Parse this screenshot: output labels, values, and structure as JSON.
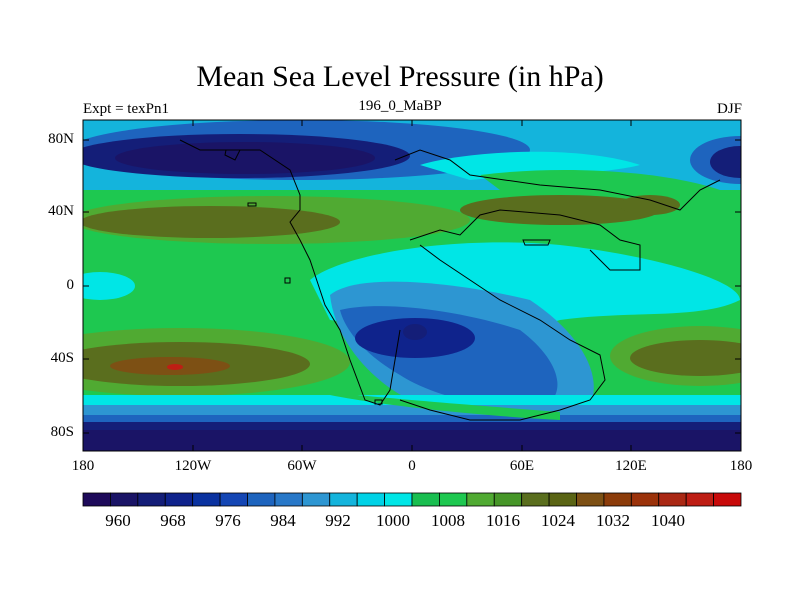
{
  "title": "Mean Sea Level Pressure (in hPa)",
  "subtitle_left": "Expt = texPn1",
  "subtitle_center": "196_0_MaBP",
  "subtitle_right": "DJF",
  "y_ticks": [
    "80N",
    "40N",
    "0",
    "40S",
    "80S"
  ],
  "x_ticks": [
    "180",
    "120W",
    "60W",
    "0",
    "60E",
    "120E",
    "180"
  ],
  "colorbar": {
    "labels": [
      "960",
      "968",
      "976",
      "984",
      "992",
      "1000",
      "1008",
      "1016",
      "1024",
      "1032",
      "1040"
    ],
    "colors": [
      "#1e0a5a",
      "#1a1466",
      "#141e78",
      "#0f238c",
      "#0a32a0",
      "#1446b4",
      "#1e64be",
      "#2878c8",
      "#2d96d2",
      "#14b4dc",
      "#00d2e6",
      "#00e6e6",
      "#19be50",
      "#1ec850",
      "#50aa32",
      "#469628",
      "#5a6e1e",
      "#5a6414",
      "#7d5014",
      "#8c3c0a",
      "#9b320a",
      "#aa2814",
      "#be1e14",
      "#c80a0a"
    ]
  },
  "chart_data": {
    "type": "heatmap",
    "title": "Mean Sea Level Pressure (in hPa)",
    "xlabel": "",
    "ylabel": "",
    "xlim": [
      -180,
      180
    ],
    "ylim": [
      -90,
      90
    ],
    "units": "hPa",
    "contour_levels": [
      960,
      964,
      968,
      972,
      976,
      980,
      984,
      988,
      992,
      996,
      1000,
      1004,
      1008,
      1012,
      1016,
      1020,
      1024,
      1028,
      1032,
      1036,
      1040
    ]
  }
}
